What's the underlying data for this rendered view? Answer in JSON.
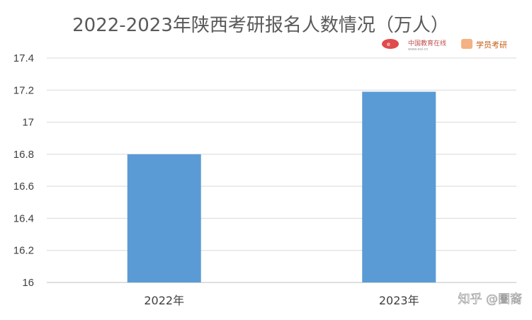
{
  "chart_data": {
    "type": "bar",
    "title": "2022-2023年陕西考研报名人数情况（万人）",
    "categories": [
      "2022年",
      "2023年"
    ],
    "values": [
      16.8,
      17.19
    ],
    "ylim": [
      16,
      17.4
    ],
    "ytick_labels": [
      "16",
      "16.2",
      "16.4",
      "16.6",
      "16.8",
      "17",
      "17.2",
      "17.4"
    ],
    "yticks": [
      16,
      16.2,
      16.4,
      16.6,
      16.8,
      17,
      17.2,
      17.4
    ],
    "grid": true,
    "bar_color": "#5b9bd5",
    "xlabel": "",
    "ylabel": ""
  },
  "logos": {
    "eol": {
      "name": "eol-logo",
      "main_text": "中国教育在线",
      "sub_text": "www.eol.cn"
    },
    "xuewang": {
      "name": "xuewang-kaoyan-logo",
      "text": "学员考研"
    }
  },
  "watermark": "知乎 @圕裔",
  "colors": {
    "bar": "#5b9bd5",
    "grid": "#d9d9d9",
    "axis": "#bfbfbf",
    "title": "#595959"
  }
}
